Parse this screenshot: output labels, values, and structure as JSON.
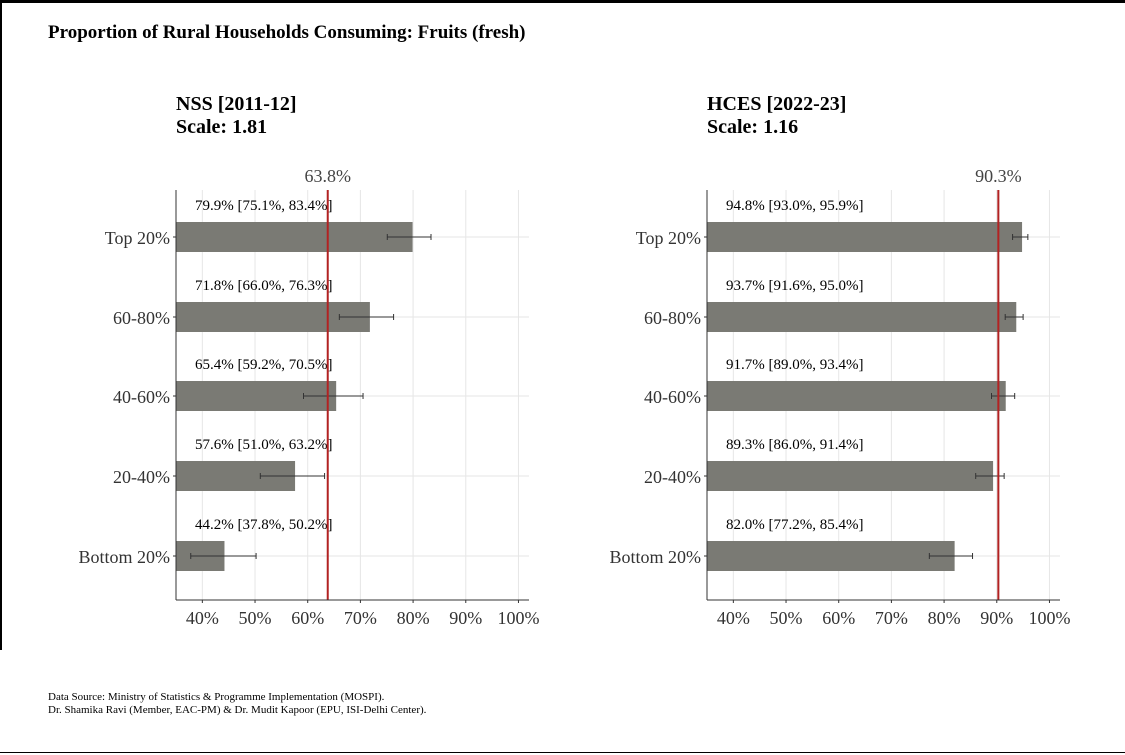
{
  "title": "Proportion of Rural Households Consuming: Fruits (fresh)",
  "source_lines": [
    "Data Source: Ministry of Statistics & Programme Implementation (MOSPI).",
    "Dr. Shamika Ravi (Member, EAC-PM) & Dr. Mudit Kapoor (EPU, ISI-Delhi Center)."
  ],
  "colors": {
    "bar": "#7a7a74",
    "reference_line": "#b22222",
    "grid": "#e6e6e6",
    "error_bar": "#333333"
  },
  "chart_data": [
    {
      "type": "bar",
      "orientation": "horizontal",
      "title": "NSS [2011-12]",
      "subtitle": "Scale: 1.81",
      "categories": [
        "Top 20%",
        "60-80%",
        "40-60%",
        "20-40%",
        "Bottom 20%"
      ],
      "values": [
        79.9,
        71.8,
        65.4,
        57.6,
        44.2
      ],
      "ci_low": [
        75.1,
        66.0,
        59.2,
        51.0,
        37.8
      ],
      "ci_high": [
        83.4,
        76.3,
        70.5,
        63.2,
        50.2
      ],
      "labels": [
        "79.9% [75.1%, 83.4%]",
        "71.8% [66.0%, 76.3%]",
        "65.4% [59.2%, 70.5%]",
        "57.6% [51.0%, 63.2%]",
        "44.2% [37.8%, 50.2%]"
      ],
      "reference_value": 63.8,
      "reference_label": "63.8%",
      "xlim": [
        35,
        102
      ],
      "xticks": [
        40,
        50,
        60,
        70,
        80,
        90,
        100
      ],
      "xtick_labels": [
        "40%",
        "50%",
        "60%",
        "70%",
        "80%",
        "90%",
        "100%"
      ],
      "grid": true
    },
    {
      "type": "bar",
      "orientation": "horizontal",
      "title": "HCES [2022-23]",
      "subtitle": "Scale: 1.16",
      "categories": [
        "Top 20%",
        "60-80%",
        "40-60%",
        "20-40%",
        "Bottom 20%"
      ],
      "values": [
        94.8,
        93.7,
        91.7,
        89.3,
        82.0
      ],
      "ci_low": [
        93.0,
        91.6,
        89.0,
        86.0,
        77.2
      ],
      "ci_high": [
        95.9,
        95.0,
        93.4,
        91.4,
        85.4
      ],
      "labels": [
        "94.8% [93.0%, 95.9%]",
        "93.7% [91.6%, 95.0%]",
        "91.7% [89.0%, 93.4%]",
        "89.3% [86.0%, 91.4%]",
        "82.0% [77.2%, 85.4%]"
      ],
      "reference_value": 90.3,
      "reference_label": "90.3%",
      "xlim": [
        35,
        102
      ],
      "xticks": [
        40,
        50,
        60,
        70,
        80,
        90,
        100
      ],
      "xtick_labels": [
        "40%",
        "50%",
        "60%",
        "70%",
        "80%",
        "90%",
        "100%"
      ],
      "grid": true
    }
  ]
}
